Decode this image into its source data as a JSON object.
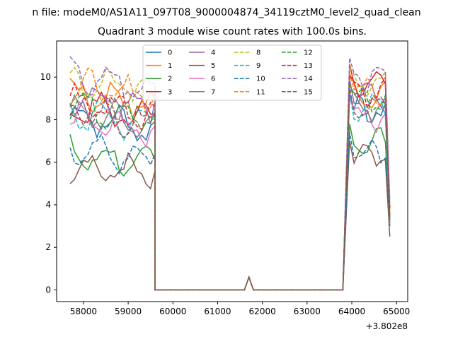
{
  "chart_data": {
    "type": "line",
    "title": "Quadrant 3 module wise count rates with 100.0s bins.",
    "suptitle": "n file: modeM0/AS1A11_097T08_9000004874_34119cztM0_level2_quad_clean",
    "xlabel": "",
    "ylabel": "",
    "x_offset_label": "+3.802e8",
    "xlim": [
      57400,
      65250
    ],
    "ylim": [
      -0.55,
      11.7
    ],
    "x_ticks": [
      58000,
      59000,
      60000,
      61000,
      62000,
      63000,
      64000,
      65000
    ],
    "x_tick_labels": [
      "58000",
      "59000",
      "60000",
      "61000",
      "62000",
      "63000",
      "64000",
      "65000"
    ],
    "y_ticks": [
      0,
      2,
      4,
      6,
      8,
      10
    ],
    "y_tick_labels": [
      "0",
      "2",
      "4",
      "6",
      "8",
      "10"
    ],
    "grid": false,
    "legend_position": "upper-center",
    "legend_columns": 4,
    "x_segments": {
      "segment1": {
        "start": 57700,
        "step": 100,
        "count": 20
      },
      "gap": [
        [
          59600,
          0
        ],
        [
          59800,
          0
        ],
        [
          60000,
          0
        ],
        [
          60200,
          0
        ],
        [
          60400,
          0
        ],
        [
          60600,
          0
        ],
        [
          60800,
          0
        ],
        [
          61000,
          0
        ],
        [
          61200,
          0
        ],
        [
          61400,
          0
        ],
        [
          61600,
          0
        ],
        [
          61700,
          0.6
        ],
        [
          61800,
          0
        ],
        [
          62000,
          0
        ],
        [
          62200,
          0
        ],
        [
          62400,
          0
        ],
        [
          62600,
          0
        ],
        [
          62800,
          0
        ],
        [
          63000,
          0
        ],
        [
          63200,
          0
        ],
        [
          63400,
          0
        ],
        [
          63600,
          0
        ],
        [
          63800,
          0
        ]
      ],
      "segment2": {
        "start": 63950,
        "step": 100,
        "count": 10
      }
    },
    "series": [
      {
        "name": "0",
        "color": "#1f77b4",
        "style": "solid",
        "level1": 8.2,
        "level2": 8.4,
        "end": 3.0
      },
      {
        "name": "1",
        "color": "#ff7f0e",
        "style": "solid",
        "level1": 9.3,
        "level2": 9.2,
        "end": 3.6
      },
      {
        "name": "2",
        "color": "#2ca02c",
        "style": "solid",
        "level1": 6.4,
        "level2": 7.0,
        "end": 3.4
      },
      {
        "name": "3",
        "color": "#d62728",
        "style": "solid",
        "level1": 8.6,
        "level2": 9.8,
        "end": 3.8
      },
      {
        "name": "4",
        "color": "#9467bd",
        "style": "solid",
        "level1": 9.2,
        "level2": 9.1,
        "end": 3.9
      },
      {
        "name": "5",
        "color": "#8c564b",
        "style": "solid",
        "level1": 5.9,
        "level2": 6.2,
        "end": 2.5
      },
      {
        "name": "6",
        "color": "#e377c2",
        "style": "solid",
        "level1": 8.0,
        "level2": 8.2,
        "end": 3.3
      },
      {
        "name": "7",
        "color": "#7f7f7f",
        "style": "solid",
        "level1": 8.4,
        "level2": 8.6,
        "end": 3.2
      },
      {
        "name": "8",
        "color": "#bcbd22",
        "style": "dashed",
        "level1": 9.9,
        "level2": 9.7,
        "end": 4.0
      },
      {
        "name": "9",
        "color": "#17becf",
        "style": "dashed",
        "level1": 8.3,
        "level2": 8.5,
        "end": 3.1
      },
      {
        "name": "10",
        "color": "#1f77b4",
        "style": "dashed",
        "level1": 6.7,
        "level2": 6.6,
        "end": 3.5
      },
      {
        "name": "11",
        "color": "#ff7f0e",
        "style": "dashed",
        "level1": 9.6,
        "level2": 9.4,
        "end": 3.7
      },
      {
        "name": "12",
        "color": "#2ca02c",
        "style": "dashed",
        "level1": 8.7,
        "level2": 8.9,
        "end": 3.4
      },
      {
        "name": "13",
        "color": "#d62728",
        "style": "dashed",
        "level1": 8.9,
        "level2": 9.3,
        "end": 3.8
      },
      {
        "name": "14",
        "color": "#9467bd",
        "style": "dashed",
        "level1": 10.0,
        "level2": 10.1,
        "end": 4.2
      },
      {
        "name": "15",
        "color": "#8c564b",
        "style": "dashed",
        "level1": 8.5,
        "level2": 8.7,
        "end": 3.3
      }
    ]
  }
}
